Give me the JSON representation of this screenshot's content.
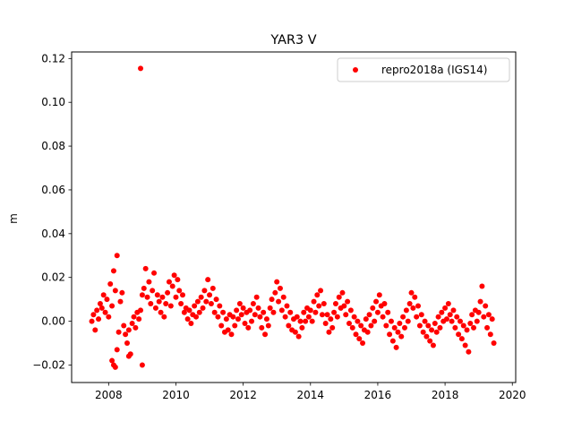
{
  "chart_data": {
    "type": "scatter",
    "title": "YAR3 V",
    "xlabel": "",
    "ylabel": "m",
    "xlim": [
      2006.9,
      2020.1
    ],
    "ylim": [
      -0.028,
      0.123
    ],
    "x_ticks": [
      2008,
      2010,
      2012,
      2014,
      2016,
      2018,
      2020
    ],
    "x_tick_labels": [
      "2008",
      "2010",
      "2012",
      "2014",
      "2016",
      "2018",
      "2020"
    ],
    "y_ticks": [
      -0.02,
      0.0,
      0.02,
      0.04,
      0.06,
      0.08,
      0.1,
      0.12
    ],
    "y_tick_labels": [
      "−0.02",
      "0.00",
      "0.02",
      "0.04",
      "0.06",
      "0.08",
      "0.10",
      "0.12"
    ],
    "grid": false,
    "legend_position": "top-right",
    "series": [
      {
        "name": "repro2018a (IGS14)",
        "color": "#ff0000",
        "marker": "circle",
        "points": [
          [
            2007.5,
            0.0
          ],
          [
            2007.55,
            0.003
          ],
          [
            2007.6,
            -0.004
          ],
          [
            2007.65,
            0.005
          ],
          [
            2007.7,
            0.001
          ],
          [
            2007.75,
            0.008
          ],
          [
            2007.8,
            0.006
          ],
          [
            2007.85,
            0.012
          ],
          [
            2007.9,
            0.004
          ],
          [
            2007.95,
            0.01
          ],
          [
            2008.0,
            0.002
          ],
          [
            2008.05,
            0.017
          ],
          [
            2008.1,
            0.007
          ],
          [
            2008.15,
            0.023
          ],
          [
            2008.2,
            0.014
          ],
          [
            2008.25,
            0.03
          ],
          [
            2008.3,
            -0.005
          ],
          [
            2008.35,
            0.009
          ],
          [
            2008.4,
            0.013
          ],
          [
            2008.45,
            -0.002
          ],
          [
            2008.5,
            -0.006
          ],
          [
            2008.55,
            -0.01
          ],
          [
            2008.6,
            -0.004
          ],
          [
            2008.65,
            -0.015
          ],
          [
            2008.7,
            -0.001
          ],
          [
            2008.75,
            0.002
          ],
          [
            2008.8,
            -0.003
          ],
          [
            2008.85,
            0.004
          ],
          [
            2008.9,
            0.001
          ],
          [
            2008.95,
            0.005
          ],
          [
            2008.1,
            -0.018
          ],
          [
            2008.15,
            -0.02
          ],
          [
            2008.2,
            -0.021
          ],
          [
            2008.25,
            -0.013
          ],
          [
            2008.6,
            -0.016
          ],
          [
            2008.95,
            0.1155
          ],
          [
            2009.0,
            -0.02
          ],
          [
            2009.0,
            0.012
          ],
          [
            2009.05,
            0.015
          ],
          [
            2009.1,
            0.024
          ],
          [
            2009.15,
            0.011
          ],
          [
            2009.2,
            0.018
          ],
          [
            2009.25,
            0.008
          ],
          [
            2009.3,
            0.014
          ],
          [
            2009.35,
            0.022
          ],
          [
            2009.4,
            0.006
          ],
          [
            2009.45,
            0.012
          ],
          [
            2009.5,
            0.009
          ],
          [
            2009.55,
            0.004
          ],
          [
            2009.6,
            0.011
          ],
          [
            2009.65,
            0.002
          ],
          [
            2009.7,
            0.008
          ],
          [
            2009.75,
            0.013
          ],
          [
            2009.8,
            0.018
          ],
          [
            2009.85,
            0.007
          ],
          [
            2009.9,
            0.016
          ],
          [
            2009.95,
            0.021
          ],
          [
            2010.0,
            0.011
          ],
          [
            2010.05,
            0.019
          ],
          [
            2010.1,
            0.014
          ],
          [
            2010.15,
            0.008
          ],
          [
            2010.2,
            0.012
          ],
          [
            2010.25,
            0.004
          ],
          [
            2010.3,
            0.006
          ],
          [
            2010.35,
            0.001
          ],
          [
            2010.4,
            0.005
          ],
          [
            2010.45,
            -0.001
          ],
          [
            2010.5,
            0.003
          ],
          [
            2010.55,
            0.007
          ],
          [
            2010.6,
            0.002
          ],
          [
            2010.65,
            0.009
          ],
          [
            2010.7,
            0.004
          ],
          [
            2010.75,
            0.011
          ],
          [
            2010.8,
            0.006
          ],
          [
            2010.85,
            0.014
          ],
          [
            2010.9,
            0.009
          ],
          [
            2010.95,
            0.019
          ],
          [
            2011.0,
            0.012
          ],
          [
            2011.05,
            0.008
          ],
          [
            2011.1,
            0.015
          ],
          [
            2011.15,
            0.004
          ],
          [
            2011.2,
            0.01
          ],
          [
            2011.25,
            0.002
          ],
          [
            2011.3,
            0.007
          ],
          [
            2011.35,
            -0.002
          ],
          [
            2011.4,
            0.004
          ],
          [
            2011.45,
            -0.005
          ],
          [
            2011.5,
            0.001
          ],
          [
            2011.55,
            -0.004
          ],
          [
            2011.6,
            0.003
          ],
          [
            2011.65,
            -0.006
          ],
          [
            2011.7,
            0.002
          ],
          [
            2011.75,
            -0.002
          ],
          [
            2011.8,
            0.005
          ],
          [
            2011.85,
            0.001
          ],
          [
            2011.9,
            0.008
          ],
          [
            2011.95,
            0.003
          ],
          [
            2012.0,
            0.006
          ],
          [
            2012.05,
            -0.001
          ],
          [
            2012.1,
            0.004
          ],
          [
            2012.15,
            -0.003
          ],
          [
            2012.2,
            0.005
          ],
          [
            2012.25,
            0.0
          ],
          [
            2012.3,
            0.008
          ],
          [
            2012.35,
            0.003
          ],
          [
            2012.4,
            0.011
          ],
          [
            2012.45,
            0.006
          ],
          [
            2012.5,
            0.002
          ],
          [
            2012.55,
            -0.003
          ],
          [
            2012.6,
            0.004
          ],
          [
            2012.65,
            -0.006
          ],
          [
            2012.7,
            0.001
          ],
          [
            2012.75,
            -0.002
          ],
          [
            2012.8,
            0.006
          ],
          [
            2012.85,
            0.01
          ],
          [
            2012.9,
            0.004
          ],
          [
            2012.95,
            0.013
          ],
          [
            2013.0,
            0.018
          ],
          [
            2013.05,
            0.009
          ],
          [
            2013.1,
            0.015
          ],
          [
            2013.15,
            0.005
          ],
          [
            2013.2,
            0.011
          ],
          [
            2013.25,
            0.002
          ],
          [
            2013.3,
            0.007
          ],
          [
            2013.35,
            -0.002
          ],
          [
            2013.4,
            0.004
          ],
          [
            2013.45,
            -0.004
          ],
          [
            2013.5,
            0.001
          ],
          [
            2013.55,
            -0.005
          ],
          [
            2013.6,
            0.002
          ],
          [
            2013.65,
            -0.007
          ],
          [
            2013.7,
            0.0
          ],
          [
            2013.75,
            -0.003
          ],
          [
            2013.8,
            0.004
          ],
          [
            2013.85,
            0.0
          ],
          [
            2013.9,
            0.006
          ],
          [
            2013.95,
            0.002
          ],
          [
            2014.0,
            0.005
          ],
          [
            2014.05,
            0.0
          ],
          [
            2014.1,
            0.009
          ],
          [
            2014.15,
            0.004
          ],
          [
            2014.2,
            0.012
          ],
          [
            2014.25,
            0.007
          ],
          [
            2014.3,
            0.014
          ],
          [
            2014.35,
            0.003
          ],
          [
            2014.4,
            0.008
          ],
          [
            2014.45,
            -0.001
          ],
          [
            2014.5,
            0.003
          ],
          [
            2014.55,
            -0.005
          ],
          [
            2014.6,
            0.001
          ],
          [
            2014.65,
            -0.003
          ],
          [
            2014.7,
            0.004
          ],
          [
            2014.75,
            0.008
          ],
          [
            2014.8,
            0.002
          ],
          [
            2014.85,
            0.011
          ],
          [
            2014.9,
            0.006
          ],
          [
            2014.95,
            0.013
          ],
          [
            2015.0,
            0.007
          ],
          [
            2015.05,
            0.003
          ],
          [
            2015.1,
            0.009
          ],
          [
            2015.15,
            -0.001
          ],
          [
            2015.2,
            0.005
          ],
          [
            2015.25,
            -0.003
          ],
          [
            2015.3,
            0.002
          ],
          [
            2015.35,
            -0.006
          ],
          [
            2015.4,
            0.0
          ],
          [
            2015.45,
            -0.008
          ],
          [
            2015.5,
            -0.002
          ],
          [
            2015.55,
            -0.01
          ],
          [
            2015.6,
            -0.004
          ],
          [
            2015.65,
            0.001
          ],
          [
            2015.7,
            -0.005
          ],
          [
            2015.75,
            0.003
          ],
          [
            2015.8,
            -0.002
          ],
          [
            2015.85,
            0.006
          ],
          [
            2015.9,
            0.0
          ],
          [
            2015.95,
            0.009
          ],
          [
            2016.0,
            0.004
          ],
          [
            2016.05,
            0.012
          ],
          [
            2016.1,
            0.007
          ],
          [
            2016.15,
            0.002
          ],
          [
            2016.2,
            0.008
          ],
          [
            2016.25,
            -0.002
          ],
          [
            2016.3,
            0.004
          ],
          [
            2016.35,
            -0.006
          ],
          [
            2016.4,
            0.0
          ],
          [
            2016.45,
            -0.009
          ],
          [
            2016.5,
            -0.003
          ],
          [
            2016.55,
            -0.012
          ],
          [
            2016.6,
            -0.005
          ],
          [
            2016.65,
            -0.001
          ],
          [
            2016.7,
            -0.007
          ],
          [
            2016.75,
            0.002
          ],
          [
            2016.8,
            -0.003
          ],
          [
            2016.85,
            0.005
          ],
          [
            2016.9,
            0.0
          ],
          [
            2016.95,
            0.008
          ],
          [
            2017.0,
            0.013
          ],
          [
            2017.05,
            0.006
          ],
          [
            2017.1,
            0.011
          ],
          [
            2017.15,
            0.002
          ],
          [
            2017.2,
            0.007
          ],
          [
            2017.25,
            -0.002
          ],
          [
            2017.3,
            0.003
          ],
          [
            2017.35,
            -0.005
          ],
          [
            2017.4,
            0.0
          ],
          [
            2017.45,
            -0.007
          ],
          [
            2017.5,
            -0.002
          ],
          [
            2017.55,
            -0.009
          ],
          [
            2017.6,
            -0.004
          ],
          [
            2017.65,
            -0.011
          ],
          [
            2017.7,
            -0.001
          ],
          [
            2017.75,
            -0.005
          ],
          [
            2017.8,
            0.002
          ],
          [
            2017.85,
            -0.003
          ],
          [
            2017.9,
            0.004
          ],
          [
            2017.95,
            0.0
          ],
          [
            2018.0,
            0.006
          ],
          [
            2018.05,
            0.001
          ],
          [
            2018.1,
            0.008
          ],
          [
            2018.15,
            0.003
          ],
          [
            2018.2,
            0.0
          ],
          [
            2018.25,
            0.005
          ],
          [
            2018.3,
            -0.003
          ],
          [
            2018.35,
            0.002
          ],
          [
            2018.4,
            -0.006
          ],
          [
            2018.45,
            0.0
          ],
          [
            2018.5,
            -0.008
          ],
          [
            2018.55,
            -0.002
          ],
          [
            2018.6,
            -0.011
          ],
          [
            2018.65,
            -0.004
          ],
          [
            2018.7,
            -0.014
          ],
          [
            2018.75,
            -0.001
          ],
          [
            2018.8,
            0.003
          ],
          [
            2018.85,
            -0.003
          ],
          [
            2018.9,
            0.005
          ],
          [
            2018.95,
            0.0
          ],
          [
            2019.0,
            0.004
          ],
          [
            2019.05,
            0.009
          ],
          [
            2019.1,
            0.016
          ],
          [
            2019.15,
            0.002
          ],
          [
            2019.2,
            0.007
          ],
          [
            2019.25,
            -0.003
          ],
          [
            2019.3,
            0.003
          ],
          [
            2019.35,
            -0.006
          ],
          [
            2019.4,
            0.001
          ],
          [
            2019.45,
            -0.01
          ]
        ]
      }
    ]
  }
}
